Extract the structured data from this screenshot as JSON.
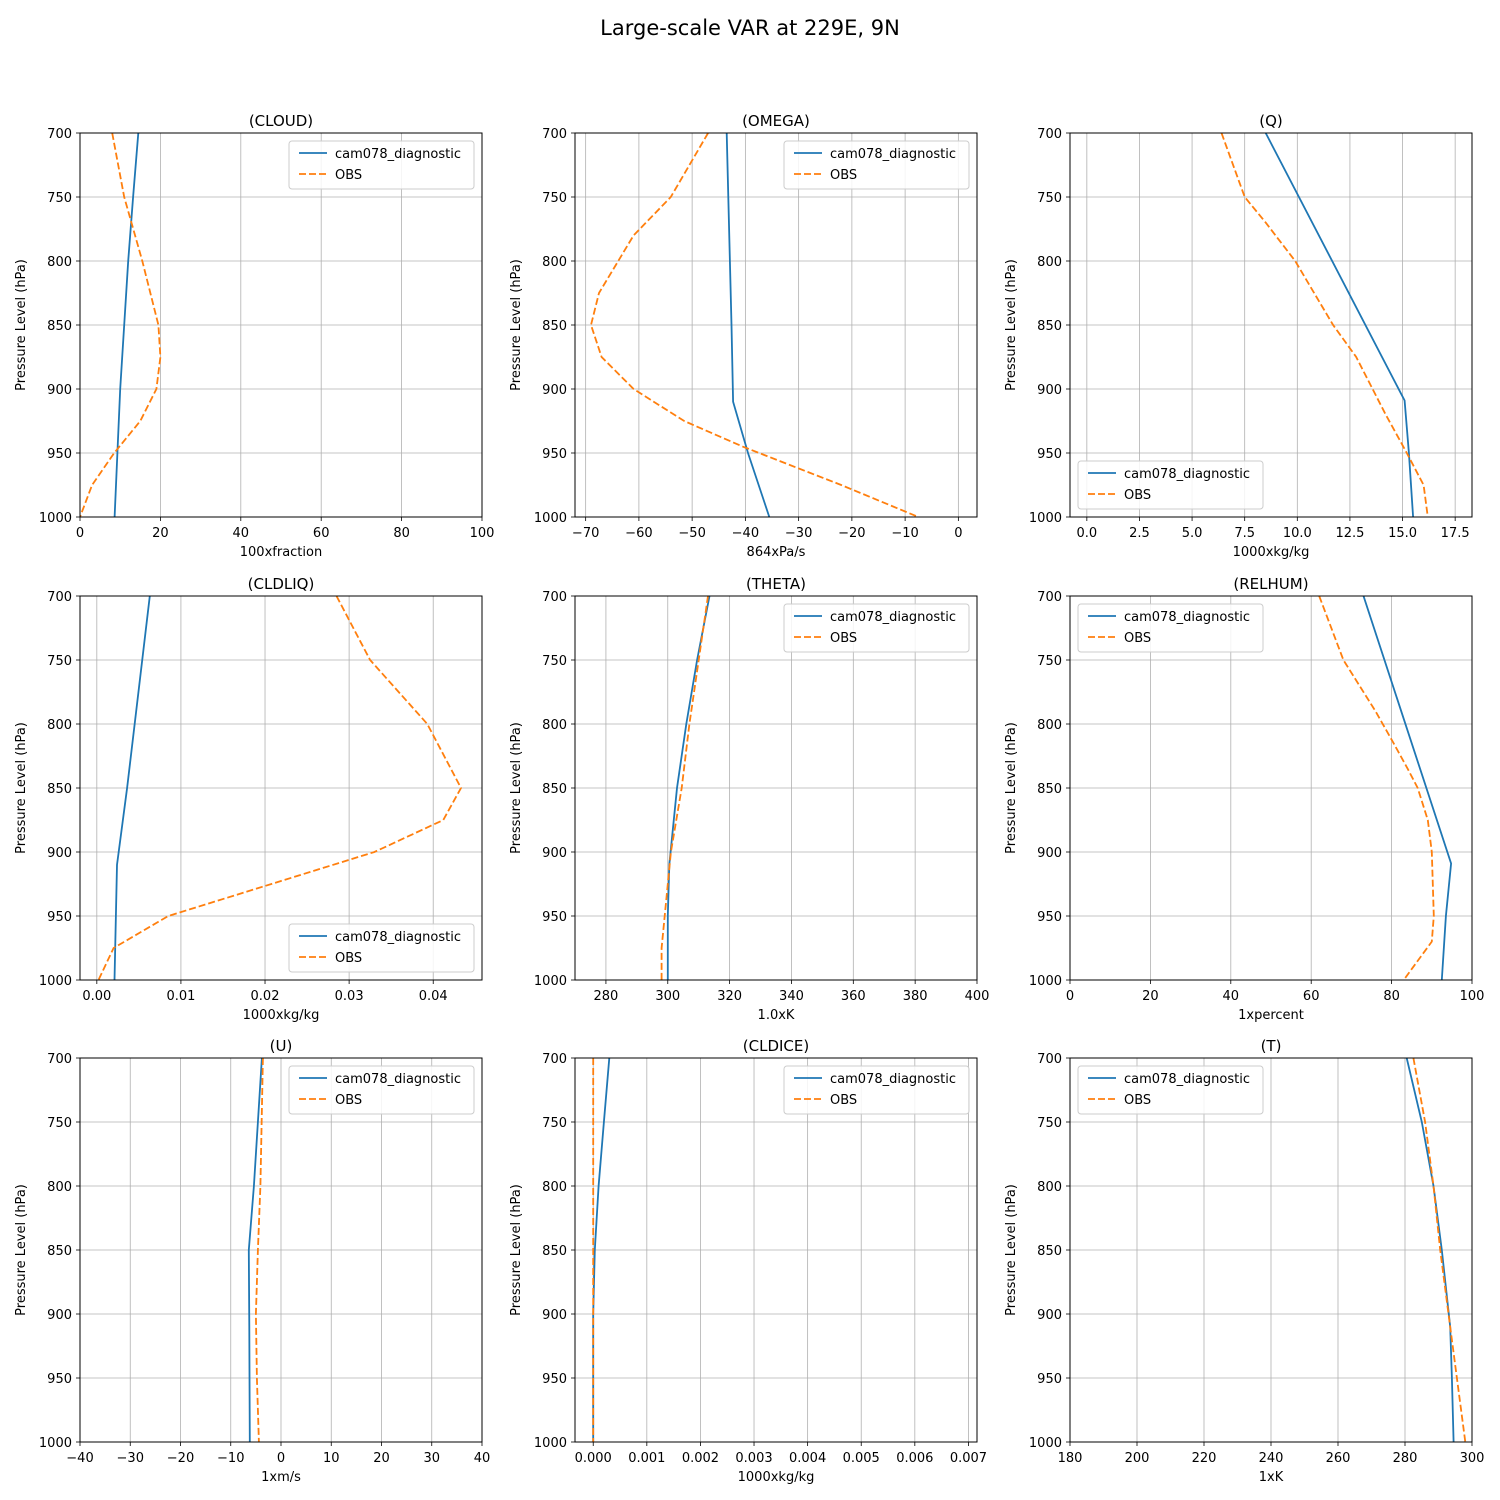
{
  "figure": {
    "suptitle": "Large-scale VAR at 229E, 9N"
  },
  "colors": {
    "model": "#1f77b4",
    "obs": "#ff7f0e",
    "grid": "#b0b0b0"
  },
  "legend_labels": {
    "model": "cam078_diagnostic",
    "obs": "OBS"
  },
  "chart_data": [
    {
      "type": "line",
      "title": "(CLOUD)",
      "xlabel": "100xfraction",
      "ylabel": "Pressure Level (hPa)",
      "xlim": [
        0,
        100
      ],
      "ylim": [
        1000,
        700
      ],
      "y_inverted": true,
      "grid": true,
      "legend_position": "top-right",
      "xticks": [
        0,
        20,
        40,
        60,
        80,
        100
      ],
      "xtick_labels": [
        "0",
        "20",
        "40",
        "60",
        "80",
        "100"
      ],
      "yticks": [
        700,
        750,
        800,
        850,
        900,
        950,
        1000
      ],
      "ytick_labels": [
        "700",
        "750",
        "800",
        "850",
        "900",
        "950",
        "1000"
      ],
      "series": [
        {
          "name": "cam078_diagnostic",
          "style": "solid",
          "x": [
            14.5,
            13.2,
            12.0,
            11.0,
            10.0,
            9.3,
            8.6
          ],
          "y": [
            700,
            750,
            800,
            850,
            900,
            950,
            1000
          ]
        },
        {
          "name": "OBS",
          "style": "dashed",
          "x": [
            8.0,
            11.0,
            15.5,
            19.5,
            20.0,
            19.0,
            15.0,
            8.5,
            3.0,
            0.0
          ],
          "y": [
            700,
            750,
            800,
            850,
            875,
            900,
            925,
            950,
            975,
            1000
          ]
        }
      ]
    },
    {
      "type": "line",
      "title": "(OMEGA)",
      "xlabel": "864xPa/s",
      "ylabel": "Pressure Level (hPa)",
      "xlim": [
        -72,
        3.5
      ],
      "ylim": [
        1000,
        700
      ],
      "y_inverted": true,
      "grid": true,
      "legend_position": "top-right",
      "xticks": [
        -70,
        -60,
        -50,
        -40,
        -30,
        -20,
        -10,
        0
      ],
      "xtick_labels": [
        "−70",
        "−60",
        "−50",
        "−40",
        "−30",
        "−20",
        "−10",
        "0"
      ],
      "yticks": [
        700,
        750,
        800,
        850,
        900,
        950,
        1000
      ],
      "ytick_labels": [
        "700",
        "750",
        "800",
        "850",
        "900",
        "950",
        "1000"
      ],
      "series": [
        {
          "name": "cam078_diagnostic",
          "style": "solid",
          "x": [
            -43.5,
            -43.2,
            -42.9,
            -42.6,
            -42.3,
            -39.5,
            -35.5
          ],
          "y": [
            700,
            750,
            800,
            850,
            910,
            950,
            1000
          ]
        },
        {
          "name": "OBS",
          "style": "dashed",
          "x": [
            -47,
            -54,
            -61,
            -67.5,
            -69,
            -67,
            -61,
            -51.5,
            -40.5,
            -22,
            -7.5
          ],
          "y": [
            700,
            750,
            780,
            825,
            850,
            875,
            900,
            925,
            945,
            975,
            1000
          ]
        }
      ]
    },
    {
      "type": "line",
      "title": "(Q)",
      "xlabel": "1000xkg/kg",
      "ylabel": "Pressure Level (hPa)",
      "xlim": [
        -0.8,
        18.3
      ],
      "ylim": [
        1000,
        700
      ],
      "y_inverted": true,
      "grid": true,
      "legend_position": "bottom-left",
      "xticks": [
        0,
        2.5,
        5,
        7.5,
        10,
        12.5,
        15,
        17.5
      ],
      "xtick_labels": [
        "0.0",
        "2.5",
        "5.0",
        "7.5",
        "10.0",
        "12.5",
        "15.0",
        "17.5"
      ],
      "yticks": [
        700,
        750,
        800,
        850,
        900,
        950,
        1000
      ],
      "ytick_labels": [
        "700",
        "750",
        "800",
        "850",
        "900",
        "950",
        "1000"
      ],
      "series": [
        {
          "name": "cam078_diagnostic",
          "style": "solid",
          "x": [
            8.5,
            15.1,
            15.3,
            15.5
          ],
          "y": [
            700,
            909,
            950,
            1000
          ]
        },
        {
          "name": "OBS",
          "style": "dashed",
          "x": [
            6.4,
            7.5,
            8.5,
            9.9,
            11.7,
            12.8,
            14.2,
            15.2,
            16.0,
            16.2
          ],
          "y": [
            700,
            750,
            770,
            800,
            850,
            875,
            920,
            950,
            975,
            1000
          ]
        }
      ]
    },
    {
      "type": "line",
      "title": "(CLDLIQ)",
      "xlabel": "1000xkg/kg",
      "ylabel": "Pressure Level (hPa)",
      "xlim": [
        -0.002,
        0.0458
      ],
      "ylim": [
        1000,
        700
      ],
      "y_inverted": true,
      "grid": true,
      "legend_position": "bottom-right",
      "xticks": [
        0,
        0.01,
        0.02,
        0.03,
        0.04
      ],
      "xtick_labels": [
        "0.00",
        "0.01",
        "0.02",
        "0.03",
        "0.04"
      ],
      "yticks": [
        700,
        750,
        800,
        850,
        900,
        950,
        1000
      ],
      "ytick_labels": [
        "700",
        "750",
        "800",
        "850",
        "900",
        "950",
        "1000"
      ],
      "series": [
        {
          "name": "cam078_diagnostic",
          "style": "solid",
          "x": [
            0.0063,
            0.0036,
            0.0024,
            0.0021
          ],
          "y": [
            700,
            850,
            910,
            1000
          ]
        },
        {
          "name": "OBS",
          "style": "dashed",
          "x": [
            0.0285,
            0.0325,
            0.0393,
            0.0433,
            0.0412,
            0.033,
            0.0085,
            0.002,
            0.0002
          ],
          "y": [
            700,
            750,
            800,
            850,
            875,
            900,
            950,
            975,
            1000
          ]
        }
      ]
    },
    {
      "type": "line",
      "title": "(THETA)",
      "xlabel": "1.0xK",
      "ylabel": "Pressure Level (hPa)",
      "xlim": [
        270,
        400
      ],
      "ylim": [
        1000,
        700
      ],
      "y_inverted": true,
      "grid": true,
      "legend_position": "top-right",
      "xticks": [
        280,
        300,
        320,
        340,
        360,
        380,
        400
      ],
      "xtick_labels": [
        "280",
        "300",
        "320",
        "340",
        "360",
        "380",
        "400"
      ],
      "yticks": [
        700,
        750,
        800,
        850,
        900,
        950,
        1000
      ],
      "ytick_labels": [
        "700",
        "750",
        "800",
        "850",
        "900",
        "950",
        "1000"
      ],
      "series": [
        {
          "name": "cam078_diagnostic",
          "style": "solid",
          "x": [
            313.5,
            309.5,
            306.0,
            303.0,
            300.5,
            300.0,
            300.0
          ],
          "y": [
            700,
            750,
            800,
            850,
            910,
            950,
            1000
          ]
        },
        {
          "name": "OBS",
          "style": "dashed",
          "x": [
            313.0,
            310.0,
            307.0,
            304.5,
            301.0,
            299.0,
            298.0,
            298.0
          ],
          "y": [
            700,
            750,
            800,
            850,
            900,
            950,
            975,
            1000
          ]
        }
      ]
    },
    {
      "type": "line",
      "title": "(RELHUM)",
      "xlabel": "1xpercent",
      "ylabel": "Pressure Level (hPa)",
      "xlim": [
        0,
        100
      ],
      "ylim": [
        1000,
        700
      ],
      "y_inverted": true,
      "grid": true,
      "legend_position": "top-left",
      "xticks": [
        0,
        20,
        40,
        60,
        80,
        100
      ],
      "xtick_labels": [
        "0",
        "20",
        "40",
        "60",
        "80",
        "100"
      ],
      "yticks": [
        700,
        750,
        800,
        850,
        900,
        950,
        1000
      ],
      "ytick_labels": [
        "700",
        "750",
        "800",
        "850",
        "900",
        "950",
        "1000"
      ],
      "series": [
        {
          "name": "cam078_diagnostic",
          "style": "solid",
          "x": [
            73.0,
            94.8,
            93.5,
            92.5
          ],
          "y": [
            700,
            909,
            950,
            1000
          ]
        },
        {
          "name": "OBS",
          "style": "dashed",
          "x": [
            62.0,
            68.0,
            76.0,
            80.5,
            84.0,
            86.5,
            89.0,
            90.0,
            90.5,
            90.0,
            83.0
          ],
          "y": [
            700,
            750,
            790,
            815,
            835,
            850,
            875,
            900,
            950,
            970,
            1000
          ]
        }
      ]
    },
    {
      "type": "line",
      "title": "(U)",
      "xlabel": "1xm/s",
      "ylabel": "Pressure Level (hPa)",
      "xlim": [
        -40,
        40
      ],
      "ylim": [
        1000,
        700
      ],
      "y_inverted": true,
      "grid": true,
      "legend_position": "top-right",
      "xticks": [
        -40,
        -30,
        -20,
        -10,
        0,
        10,
        20,
        30,
        40
      ],
      "xtick_labels": [
        "−40",
        "−30",
        "−20",
        "−10",
        "0",
        "10",
        "20",
        "30",
        "40"
      ],
      "yticks": [
        700,
        750,
        800,
        850,
        900,
        950,
        1000
      ],
      "ytick_labels": [
        "700",
        "750",
        "800",
        "850",
        "900",
        "950",
        "1000"
      ],
      "series": [
        {
          "name": "cam078_diagnostic",
          "style": "solid",
          "x": [
            -3.8,
            -4.6,
            -5.4,
            -6.4,
            -6.3,
            -6.2
          ],
          "y": [
            700,
            750,
            800,
            850,
            910,
            1000
          ]
        },
        {
          "name": "OBS",
          "style": "dashed",
          "x": [
            -3.6,
            -4.1,
            -4.6,
            -5.0,
            -4.8,
            -4.4
          ],
          "y": [
            700,
            800,
            850,
            900,
            950,
            1000
          ]
        }
      ]
    },
    {
      "type": "line",
      "title": "(CLDICE)",
      "xlabel": "1000xkg/kg",
      "ylabel": "Pressure Level (hPa)",
      "xlim": [
        -0.00034,
        0.00716
      ],
      "ylim": [
        1000,
        700
      ],
      "y_inverted": true,
      "grid": true,
      "legend_position": "top-right",
      "xticks": [
        0,
        0.001,
        0.002,
        0.003,
        0.004,
        0.005,
        0.006,
        0.007
      ],
      "xtick_labels": [
        "0.000",
        "0.001",
        "0.002",
        "0.003",
        "0.004",
        "0.005",
        "0.006",
        "0.007"
      ],
      "yticks": [
        700,
        750,
        800,
        850,
        900,
        950,
        1000
      ],
      "ytick_labels": [
        "700",
        "750",
        "800",
        "850",
        "900",
        "950",
        "1000"
      ],
      "series": [
        {
          "name": "cam078_diagnostic",
          "style": "solid",
          "x": [
            0.0003,
            0.0002,
            0.0001,
            3e-05,
            0.0,
            0.0
          ],
          "y": [
            700,
            750,
            800,
            850,
            900,
            1000
          ]
        },
        {
          "name": "OBS",
          "style": "dashed",
          "x": [
            0.0,
            0.0,
            0.0
          ],
          "y": [
            700,
            850,
            1000
          ]
        }
      ]
    },
    {
      "type": "line",
      "title": "(T)",
      "xlabel": "1xK",
      "ylabel": "Pressure Level (hPa)",
      "xlim": [
        180,
        300
      ],
      "ylim": [
        1000,
        700
      ],
      "y_inverted": true,
      "grid": true,
      "legend_position": "top-left",
      "xticks": [
        180,
        200,
        220,
        240,
        260,
        280,
        300
      ],
      "xtick_labels": [
        "180",
        "200",
        "220",
        "240",
        "260",
        "280",
        "300"
      ],
      "yticks": [
        700,
        750,
        800,
        850,
        900,
        950,
        1000
      ],
      "ytick_labels": [
        "700",
        "750",
        "800",
        "850",
        "900",
        "950",
        "1000"
      ],
      "series": [
        {
          "name": "cam078_diagnostic",
          "style": "solid",
          "x": [
            280.5,
            285.0,
            288.5,
            291.0,
            293.5,
            294.0,
            294.5
          ],
          "y": [
            700,
            750,
            800,
            850,
            910,
            950,
            1000
          ]
        },
        {
          "name": "OBS",
          "style": "dashed",
          "x": [
            282.5,
            286.0,
            288.5,
            290.5,
            293.0,
            295.5,
            298.0
          ],
          "y": [
            700,
            750,
            800,
            850,
            900,
            950,
            1000
          ]
        }
      ]
    }
  ]
}
